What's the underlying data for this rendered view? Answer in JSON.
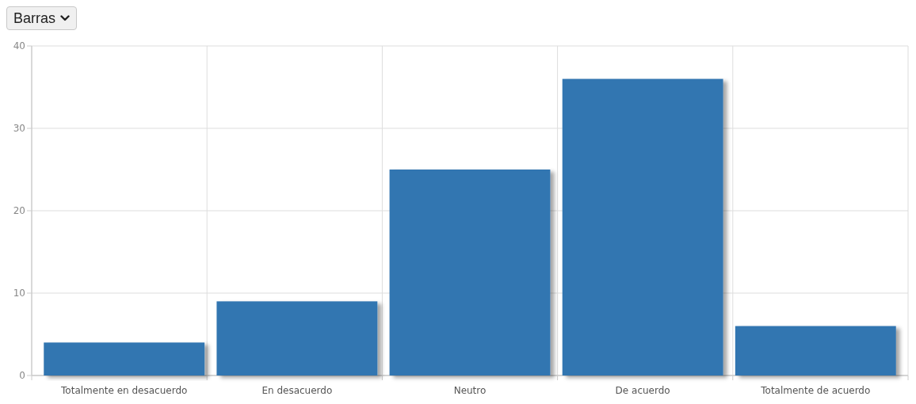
{
  "chart_data": {
    "type": "bar",
    "categories": [
      "Totalmente en desacuerdo",
      "En desacuerdo",
      "Neutro",
      "De acuerdo",
      "Totalmente de acuerdo"
    ],
    "values": [
      4,
      9,
      25,
      36,
      6
    ],
    "color": "#3276b1",
    "ylim": [
      0,
      40
    ],
    "yticks": [
      0,
      10,
      20,
      30,
      40
    ],
    "grid": true,
    "annotations": [
      "Barras"
    ]
  }
}
